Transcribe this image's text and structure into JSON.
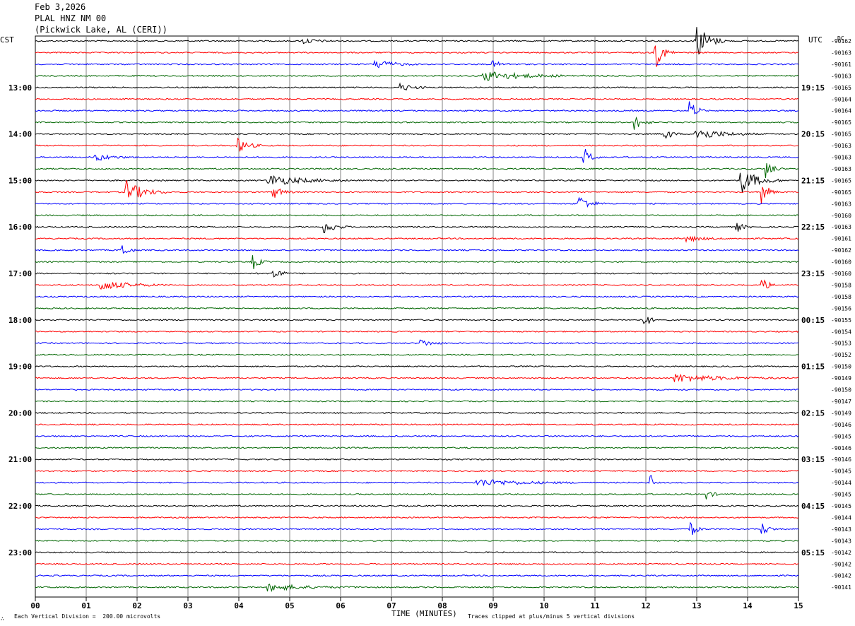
{
  "header": {
    "date": "Feb 3,2026",
    "station": "PLAL HNZ NM 00",
    "location": "(Pickwick Lake, AL (CERI))"
  },
  "left_axis_label": "CST",
  "right_axis_label": "UTC",
  "dc_label": "DC",
  "footer": {
    "scale_note": "Each Vertical Division =  200.00 microvolts",
    "clip_note": "Traces clipped at plus/minus 5 vertical divisions",
    "usgs_mark": "∴"
  },
  "colors": {
    "trace_cycle": [
      "#000000",
      "#ff0000",
      "#0000ff",
      "#006600"
    ],
    "grid": "#808080"
  },
  "chart_data": {
    "type": "line",
    "title": "PLAL HNZ NM 00 (Pickwick Lake, AL (CERI)) Feb 3,2026",
    "xlabel": "TIME (MINUTES)",
    "xlim": [
      0,
      15
    ],
    "x_ticks": [
      "00",
      "01",
      "02",
      "03",
      "04",
      "05",
      "06",
      "07",
      "08",
      "09",
      "10",
      "11",
      "12",
      "13",
      "14",
      "15"
    ],
    "traces_per_hour": 4,
    "trace_count": 48,
    "left_ticks": [
      {
        "trace": 4,
        "label": "13:00"
      },
      {
        "trace": 8,
        "label": "14:00"
      },
      {
        "trace": 12,
        "label": "15:00"
      },
      {
        "trace": 16,
        "label": "16:00"
      },
      {
        "trace": 20,
        "label": "17:00"
      },
      {
        "trace": 24,
        "label": "18:00"
      },
      {
        "trace": 28,
        "label": "19:00"
      },
      {
        "trace": 32,
        "label": "20:00"
      },
      {
        "trace": 36,
        "label": "21:00"
      },
      {
        "trace": 40,
        "label": "22:00"
      },
      {
        "trace": 44,
        "label": "23:00"
      }
    ],
    "right_ticks": [
      {
        "trace": 4,
        "label": "19:15"
      },
      {
        "trace": 8,
        "label": "20:15"
      },
      {
        "trace": 12,
        "label": "21:15"
      },
      {
        "trace": 16,
        "label": "22:15"
      },
      {
        "trace": 20,
        "label": "23:15"
      },
      {
        "trace": 24,
        "label": "00:15"
      },
      {
        "trace": 28,
        "label": "01:15"
      },
      {
        "trace": 32,
        "label": "02:15"
      },
      {
        "trace": 36,
        "label": "03:15"
      },
      {
        "trace": 40,
        "label": "04:15"
      },
      {
        "trace": 44,
        "label": "05:15"
      }
    ],
    "dc_offsets": [
      "-90162",
      "-90163",
      "-90161",
      "-90163",
      "-90165",
      "-90164",
      "-90164",
      "-90165",
      "-90165",
      "-90163",
      "-90163",
      "-90163",
      "-90165",
      "-90165",
      "-90163",
      "-90160",
      "-90163",
      "-90161",
      "-90162",
      "-90160",
      "-90160",
      "-90158",
      "-90158",
      "-90156",
      "-90155",
      "-90154",
      "-90153",
      "-90152",
      "-90150",
      "-90149",
      "-90150",
      "-90147",
      "-90149",
      "-90146",
      "-90145",
      "-90146",
      "-90146",
      "-90145",
      "-90144",
      "-90145",
      "-90145",
      "-90144",
      "-90143",
      "-90143",
      "-90142",
      "-90142",
      "-90142",
      "-90141"
    ],
    "events": [
      {
        "trace": 0,
        "minute": 13.0,
        "dur": 0.6,
        "amp": 3.2
      },
      {
        "trace": 0,
        "minute": 5.3,
        "dur": 0.6,
        "amp": 0.5
      },
      {
        "trace": 1,
        "minute": 12.2,
        "dur": 0.4,
        "amp": 2.5
      },
      {
        "trace": 2,
        "minute": 6.7,
        "dur": 0.8,
        "amp": 0.9
      },
      {
        "trace": 2,
        "minute": 9.0,
        "dur": 0.5,
        "amp": 0.5
      },
      {
        "trace": 3,
        "minute": 8.8,
        "dur": 2.0,
        "amp": 0.9
      },
      {
        "trace": 4,
        "minute": 7.2,
        "dur": 0.6,
        "amp": 0.6
      },
      {
        "trace": 6,
        "minute": 12.9,
        "dur": 0.3,
        "amp": 1.6
      },
      {
        "trace": 7,
        "minute": 11.8,
        "dur": 0.4,
        "amp": 1.2
      },
      {
        "trace": 8,
        "minute": 13.0,
        "dur": 1.2,
        "amp": 1.1
      },
      {
        "trace": 8,
        "minute": 12.4,
        "dur": 0.3,
        "amp": 1.0
      },
      {
        "trace": 9,
        "minute": 4.0,
        "dur": 0.5,
        "amp": 1.2
      },
      {
        "trace": 10,
        "minute": 10.8,
        "dur": 0.3,
        "amp": 1.6
      },
      {
        "trace": 10,
        "minute": 1.2,
        "dur": 0.8,
        "amp": 0.6
      },
      {
        "trace": 11,
        "minute": 14.4,
        "dur": 0.3,
        "amp": 1.5
      },
      {
        "trace": 12,
        "minute": 13.9,
        "dur": 0.8,
        "amp": 2.0
      },
      {
        "trace": 12,
        "minute": 4.6,
        "dur": 1.6,
        "amp": 1.0
      },
      {
        "trace": 13,
        "minute": 1.8,
        "dur": 0.8,
        "amp": 2.0
      },
      {
        "trace": 13,
        "minute": 4.7,
        "dur": 0.4,
        "amp": 1.0
      },
      {
        "trace": 13,
        "minute": 14.3,
        "dur": 0.3,
        "amp": 2.0
      },
      {
        "trace": 14,
        "minute": 10.7,
        "dur": 0.5,
        "amp": 1.4
      },
      {
        "trace": 16,
        "minute": 5.7,
        "dur": 0.5,
        "amp": 1.1
      },
      {
        "trace": 16,
        "minute": 13.8,
        "dur": 0.3,
        "amp": 0.8
      },
      {
        "trace": 17,
        "minute": 12.8,
        "dur": 0.8,
        "amp": 0.5
      },
      {
        "trace": 18,
        "minute": 1.7,
        "dur": 0.3,
        "amp": 1.4
      },
      {
        "trace": 19,
        "minute": 4.3,
        "dur": 0.3,
        "amp": 1.2
      },
      {
        "trace": 20,
        "minute": 4.7,
        "dur": 0.3,
        "amp": 1.4
      },
      {
        "trace": 21,
        "minute": 1.3,
        "dur": 1.3,
        "amp": 0.9
      },
      {
        "trace": 21,
        "minute": 14.3,
        "dur": 0.3,
        "amp": 1.2
      },
      {
        "trace": 24,
        "minute": 12.0,
        "dur": 0.2,
        "amp": 1.5
      },
      {
        "trace": 26,
        "minute": 7.6,
        "dur": 0.5,
        "amp": 0.6
      },
      {
        "trace": 29,
        "minute": 12.6,
        "dur": 2.2,
        "amp": 0.7
      },
      {
        "trace": 38,
        "minute": 8.7,
        "dur": 2.2,
        "amp": 0.6
      },
      {
        "trace": 38,
        "minute": 12.1,
        "dur": 0.1,
        "amp": 1.4
      },
      {
        "trace": 39,
        "minute": 13.2,
        "dur": 0.3,
        "amp": 0.8
      },
      {
        "trace": 42,
        "minute": 12.9,
        "dur": 0.3,
        "amp": 1.1
      },
      {
        "trace": 42,
        "minute": 14.3,
        "dur": 0.3,
        "amp": 1.1
      },
      {
        "trace": 47,
        "minute": 4.6,
        "dur": 1.8,
        "amp": 0.6
      }
    ]
  }
}
